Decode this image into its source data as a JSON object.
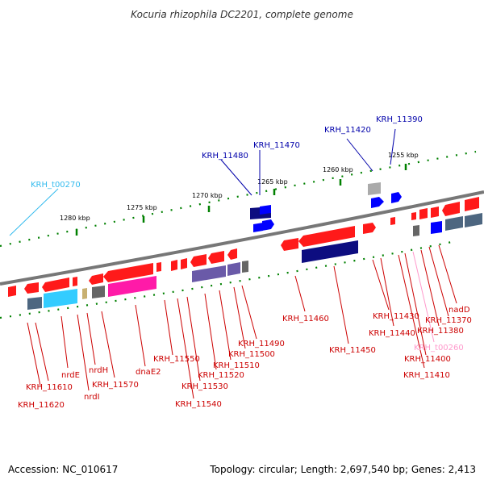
{
  "title": "Kocuria rhizophila DC2201, complete genome",
  "footer": {
    "accession": "Accession: NC_010617",
    "summary": "Topology: circular; Length: 2,697,540 bp; Genes: 2,413"
  },
  "ruler": [
    "1280 kbp",
    "1275 kbp",
    "1270 kbp",
    "1265 kbp",
    "1260 kbp",
    "1255 kbp"
  ],
  "colors": {
    "backbone": "#777777",
    "red": "#ff1a1a",
    "dark_red": "#cc0000",
    "navy": "#0d0d80",
    "blue": "#0000ff",
    "cyan": "#33ccff",
    "magenta": "#ff1aa8",
    "pink": "#ff99cc",
    "tick_green": "#008000",
    "dark_blue_label": "#0000aa",
    "slate": "#4d6680",
    "lavender": "#6a5aa8"
  },
  "labels_top": [
    {
      "text": "KRH_t00270",
      "color": "#33bbee"
    },
    {
      "text": "KRH_11480",
      "color": "#0000aa"
    },
    {
      "text": "KRH_11470",
      "color": "#0000aa"
    },
    {
      "text": "KRH_11420",
      "color": "#0000aa"
    },
    {
      "text": "KRH_11390",
      "color": "#0000aa"
    }
  ],
  "labels_bottom": [
    {
      "text": "KRH_11610",
      "color": "#cc0000"
    },
    {
      "text": "KRH_11620",
      "color": "#cc0000"
    },
    {
      "text": "nrdE",
      "color": "#cc0000"
    },
    {
      "text": "nrdI",
      "color": "#cc0000"
    },
    {
      "text": "nrdH",
      "color": "#cc0000"
    },
    {
      "text": "KRH_11570",
      "color": "#cc0000"
    },
    {
      "text": "dnaE2",
      "color": "#cc0000"
    },
    {
      "text": "KRH_11550",
      "color": "#cc0000"
    },
    {
      "text": "KRH_11540",
      "color": "#cc0000"
    },
    {
      "text": "KRH_11530",
      "color": "#cc0000"
    },
    {
      "text": "KRH_11520",
      "color": "#cc0000"
    },
    {
      "text": "KRH_11510",
      "color": "#cc0000"
    },
    {
      "text": "KRH_11500",
      "color": "#cc0000"
    },
    {
      "text": "KRH_11490",
      "color": "#cc0000"
    },
    {
      "text": "KRH_11460",
      "color": "#cc0000"
    },
    {
      "text": "KRH_11450",
      "color": "#cc0000"
    },
    {
      "text": "KRH_11440",
      "color": "#cc0000"
    },
    {
      "text": "KRH_11430",
      "color": "#cc0000"
    },
    {
      "text": "KRH_11410",
      "color": "#cc0000"
    },
    {
      "text": "KRH_11400",
      "color": "#cc0000"
    },
    {
      "text": "KRH_t00260",
      "color": "#ff99cc"
    },
    {
      "text": "KRH_11380",
      "color": "#cc0000"
    },
    {
      "text": "KRH_11370",
      "color": "#cc0000"
    },
    {
      "text": "nadD",
      "color": "#cc0000"
    }
  ]
}
